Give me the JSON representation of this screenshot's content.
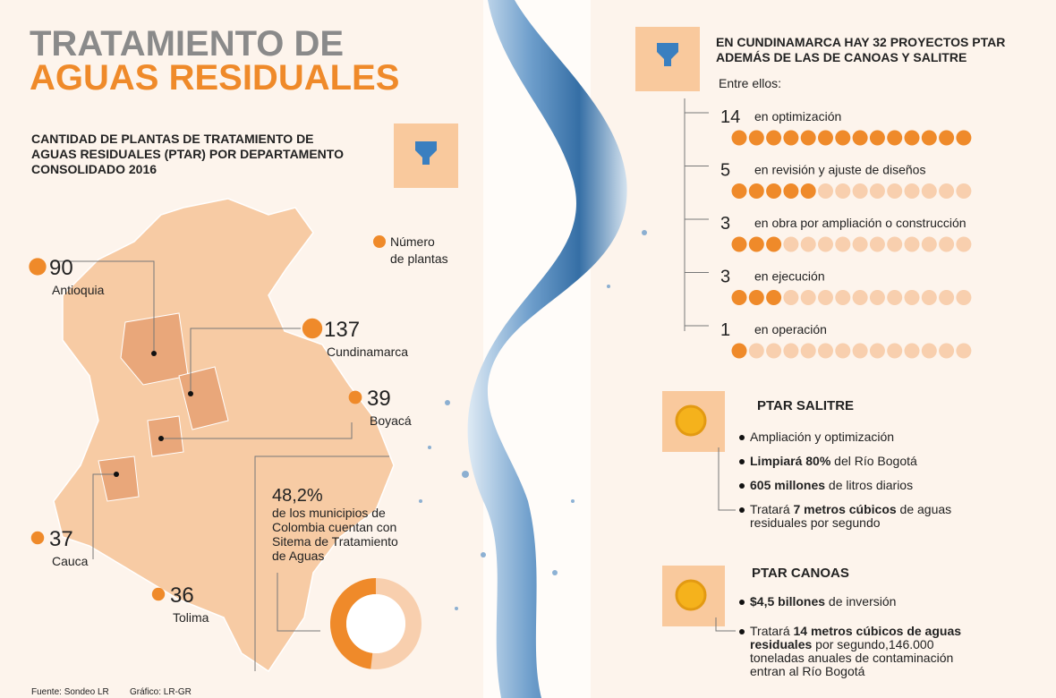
{
  "header": {
    "title_line1": "TRATAMIENTO DE",
    "title_line2": "AGUAS RESIDUALES"
  },
  "map_section": {
    "title_lines": [
      "CANTIDAD DE PLANTAS DE TRATAMIENTO DE",
      "AGUAS RESIDUALES (PTAR) POR DEPARTAMENTO",
      "CONSOLIDADO 2016"
    ],
    "legend_lines": [
      "Número",
      "de plantas"
    ],
    "color": "#ef8a2a",
    "departments": [
      {
        "name": "Antioquia",
        "value": 90
      },
      {
        "name": "Cundinamarca",
        "value": 137
      },
      {
        "name": "Boyacá",
        "value": 39
      },
      {
        "name": "Cauca",
        "value": 37
      },
      {
        "name": "Tolima",
        "value": 36
      }
    ],
    "coverage": {
      "value": 48.2,
      "value_label": "48,2%",
      "text_lines": [
        "de los municipios de",
        "Colombia cuentan con",
        "Sitema de Tratamiento",
        "de Aguas"
      ]
    }
  },
  "projects": {
    "title_lines": [
      "EN CUNDINAMARCA HAY 32 PROYECTOS PTAR",
      "ADEMÁS DE LAS DE CANOAS Y SALITRE"
    ],
    "subtitle": "Entre ellos:",
    "items": [
      {
        "count": 14,
        "label": "en optimización"
      },
      {
        "count": 5,
        "label": "en revisión y ajuste de diseños"
      },
      {
        "count": 3,
        "label": "en obra por ampliación o construcción"
      },
      {
        "count": 3,
        "label": "en ejecución"
      },
      {
        "count": 1,
        "label": "en operación"
      }
    ]
  },
  "salitre": {
    "title": "PTAR SALITRE",
    "items": [
      [
        [
          {
            "text": "Ampliación y optimización"
          }
        ]
      ],
      [
        [
          {
            "text": "Limpiará 80%",
            "bold": true
          },
          {
            "text": " del Río Bogotá"
          }
        ]
      ],
      [
        [
          {
            "text": "605 millones",
            "bold": true
          },
          {
            "text": " de litros diarios"
          }
        ]
      ],
      [
        [
          {
            "text": "Tratará "
          },
          {
            "text": "7 metros cúbicos",
            "bold": true
          },
          {
            "text": " de aguas"
          }
        ],
        [
          {
            "text": "residuales por segundo"
          }
        ]
      ]
    ]
  },
  "canoas": {
    "title": "PTAR CANOAS",
    "items": [
      [
        [
          {
            "text": "$4,5 billones",
            "bold": true
          },
          {
            "text": " de inversión"
          }
        ]
      ],
      [
        [
          {
            "text": "Tratará "
          },
          {
            "text": "14 metros cúbicos de aguas",
            "bold": true
          }
        ],
        [
          {
            "text": "residuales",
            "bold": true
          },
          {
            "text": " por segundo,146.000"
          }
        ],
        [
          {
            "text": "toneladas anuales de contaminación"
          }
        ],
        [
          {
            "text": "entran al Río Bogotá"
          }
        ]
      ]
    ]
  },
  "footer": {
    "source": "Fuente: Sondeo LR",
    "credit": "Gráfico: LR-GR"
  }
}
